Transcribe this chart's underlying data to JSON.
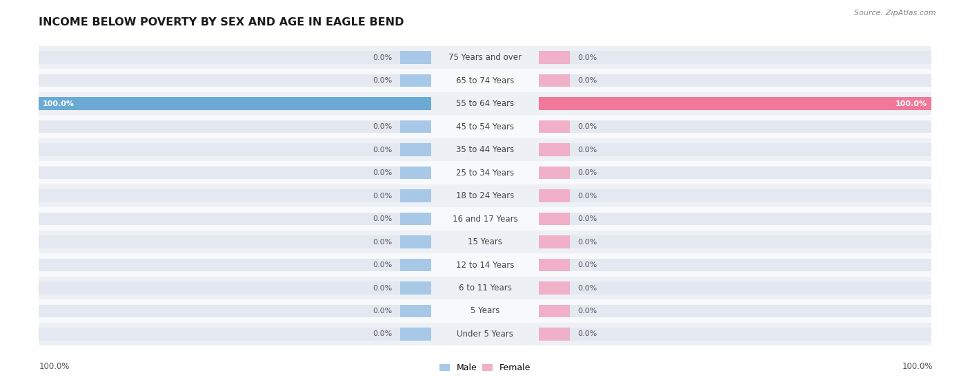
{
  "title": "INCOME BELOW POVERTY BY SEX AND AGE IN EAGLE BEND",
  "source": "Source: ZipAtlas.com",
  "categories": [
    "Under 5 Years",
    "5 Years",
    "6 to 11 Years",
    "12 to 14 Years",
    "15 Years",
    "16 and 17 Years",
    "18 to 24 Years",
    "25 to 34 Years",
    "35 to 44 Years",
    "45 to 54 Years",
    "55 to 64 Years",
    "65 to 74 Years",
    "75 Years and over"
  ],
  "male_values": [
    0.0,
    0.0,
    0.0,
    0.0,
    0.0,
    0.0,
    0.0,
    0.0,
    0.0,
    0.0,
    100.0,
    0.0,
    0.0
  ],
  "female_values": [
    0.0,
    0.0,
    0.0,
    0.0,
    0.0,
    0.0,
    0.0,
    0.0,
    0.0,
    0.0,
    100.0,
    0.0,
    0.0
  ],
  "male_color_stub": "#a8c8e8",
  "female_color_stub": "#f0b0c8",
  "male_color_full": "#6aaad4",
  "female_color_full": "#f07898",
  "bar_bg_color": "#e4e8f0",
  "row_bg_light": "#edf0f5",
  "row_bg_white": "#f8f9fb",
  "label_fg": "#444444",
  "val_fg_dark": "#555555",
  "val_fg_white": "#ffffff",
  "xlim": 100,
  "figwidth": 14.06,
  "figheight": 5.58
}
